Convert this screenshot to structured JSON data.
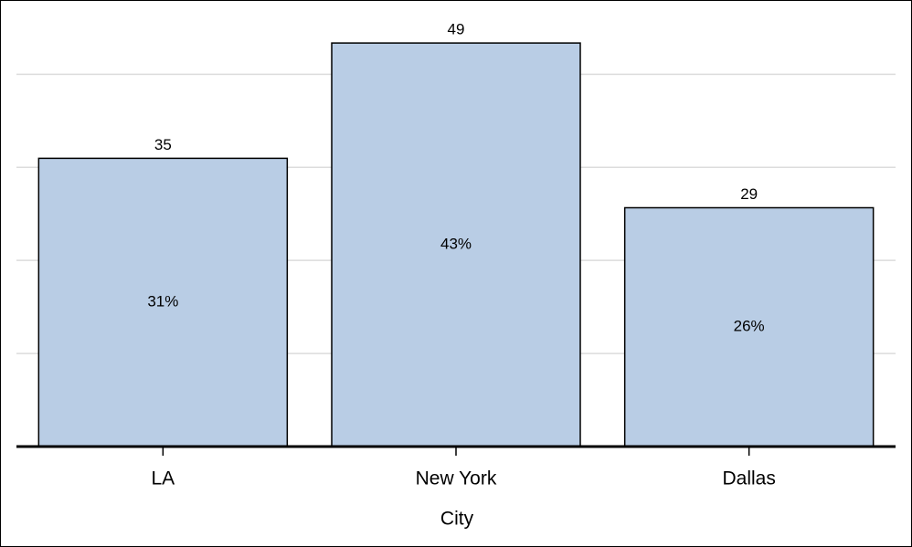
{
  "chart_data": {
    "type": "bar",
    "x_label": "City",
    "categories": [
      "LA",
      "New York",
      "Dallas"
    ],
    "values": [
      30.97,
      43.36,
      25.66
    ],
    "value_labels": [
      "31%",
      "43%",
      "26%"
    ],
    "counts": [
      35,
      49,
      29
    ],
    "color": "#b9cde5",
    "ylim": [
      0,
      47
    ],
    "yticks": [
      0,
      10,
      20,
      30,
      40
    ],
    "grid": true
  }
}
